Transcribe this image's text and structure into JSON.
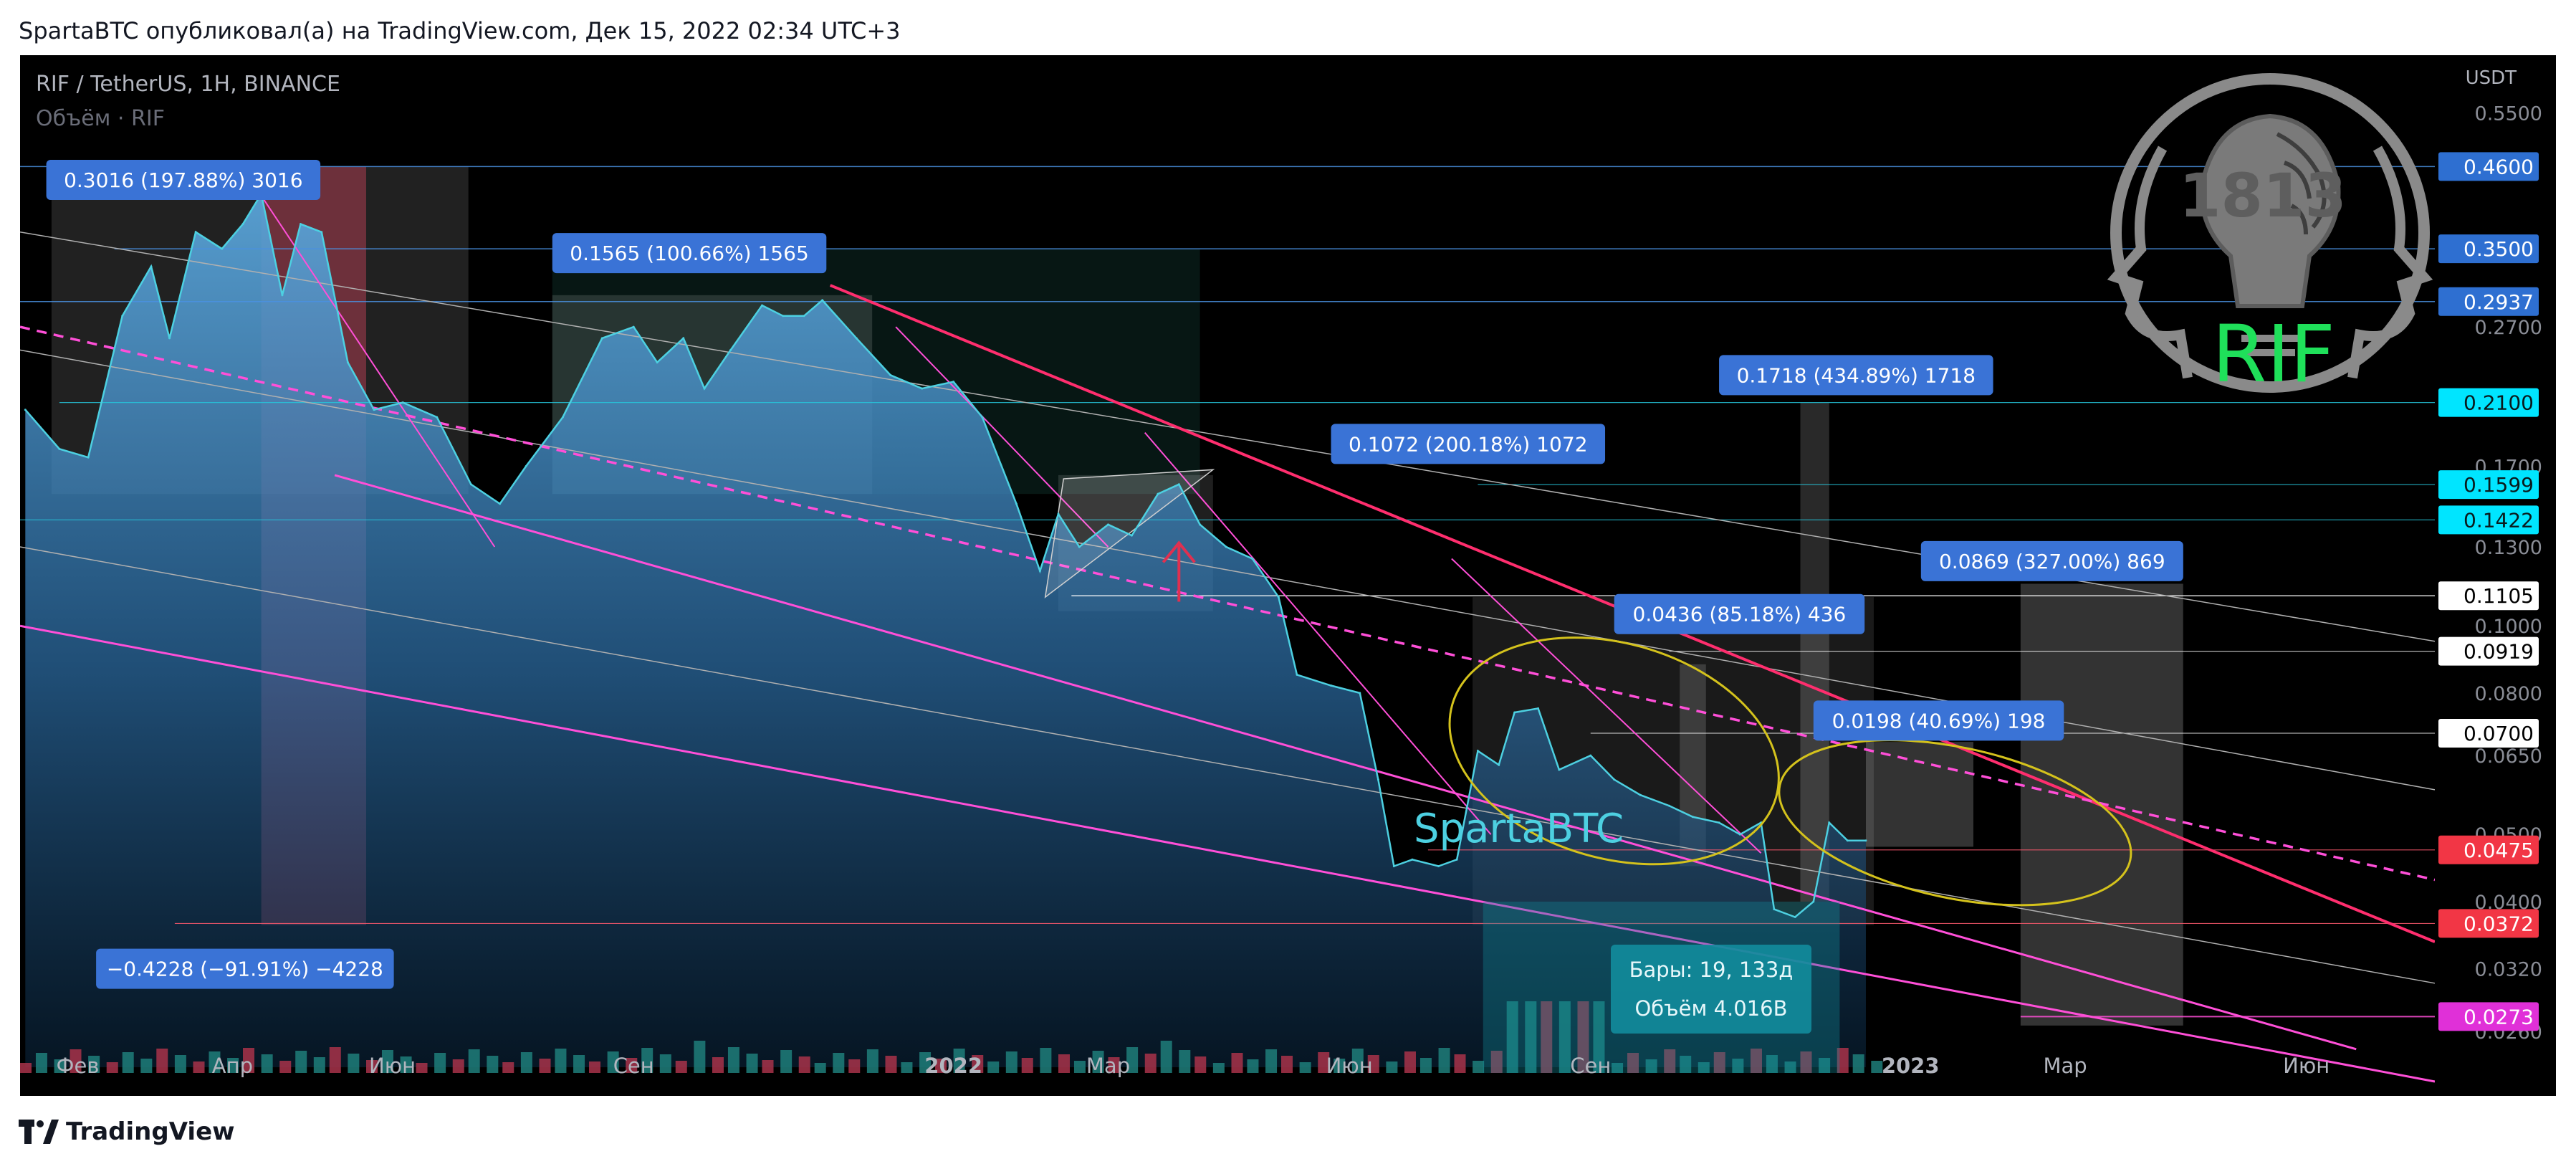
{
  "header": {
    "publisher_line": "SpartaBTC опубликовал(а) на TradingView.com, Дек 15, 2022 02:34 UTC+3"
  },
  "footer": {
    "brand": "TradingView"
  },
  "legend": {
    "symbol": "RIF / TetherUS, 1H, BINANCE",
    "volume": "Объём · RIF"
  },
  "watermark": {
    "author": "SpartaBTC",
    "logo_number": "1813",
    "logo_ticker": "RIF"
  },
  "measure_labels": [
    {
      "id": "m1",
      "text": "0.3016 (197.88%) 3016"
    },
    {
      "id": "m2",
      "text": "0.1565 (100.66%) 1565"
    },
    {
      "id": "m3",
      "text": "0.1072 (200.18%) 1072"
    },
    {
      "id": "m4",
      "text": "0.1718 (434.89%) 1718"
    },
    {
      "id": "m5",
      "text": "0.0436 (85.18%) 436"
    },
    {
      "id": "m6",
      "text": "0.0198 (40.69%) 198"
    },
    {
      "id": "m7",
      "text": "0.0869 (327.00%) 869"
    },
    {
      "id": "m8",
      "text": "−0.4228 (−91.91%) −4228"
    }
  ],
  "bars_info": {
    "line1": "Бары: 19, 133д",
    "line2": "Объём 4.016B"
  },
  "colors": {
    "background": "#000000",
    "price_line": "#4dd0e1",
    "price_fill_top": "#4f93c8",
    "measure_blue": "#2962ff",
    "pink": "#ff4fd8",
    "red_line": "#ff2e6e",
    "yellow": "#d4c21c",
    "cyan_tag": "#00e5ff"
  },
  "chart_data": {
    "type": "line",
    "title": "RIF / TetherUS, 1H, BINANCE",
    "y_scale": "log",
    "y_unit": "USDT",
    "ylim": [
      0.022,
      0.62
    ],
    "x_tick_labels": [
      "Фев",
      "Апр",
      "Июн",
      "Сен",
      "2022",
      "Мар",
      "Июн",
      "Сен",
      "2023",
      "Мар",
      "Июн"
    ],
    "x_ticks": [
      {
        "date": "2021-02-01",
        "label": "Фев"
      },
      {
        "date": "2021-04-01",
        "label": "Апр"
      },
      {
        "date": "2021-06-01",
        "label": "Июн"
      },
      {
        "date": "2021-09-01",
        "label": "Сен"
      },
      {
        "date": "2022-01-01",
        "label": "2022"
      },
      {
        "date": "2022-03-01",
        "label": "Мар"
      },
      {
        "date": "2022-06-01",
        "label": "Июн"
      },
      {
        "date": "2022-09-01",
        "label": "Сен"
      },
      {
        "date": "2023-01-01",
        "label": "2023"
      },
      {
        "date": "2023-03-01",
        "label": "Мар"
      },
      {
        "date": "2023-06-01",
        "label": "Июн"
      }
    ],
    "axis_ticks": [
      "0.5500",
      "0.2700",
      "0.1700",
      "0.1300",
      "0.1000",
      "0.0800",
      "0.0650",
      "0.0500",
      "0.0400",
      "0.0320",
      "0.0260"
    ],
    "price_tags": [
      {
        "label": "0.4600",
        "value": 0.46,
        "style": "blue"
      },
      {
        "label": "0.3500",
        "value": 0.35,
        "style": "blue"
      },
      {
        "label": "0.2937",
        "value": 0.2937,
        "style": "blue"
      },
      {
        "label": "0.2100",
        "value": 0.21,
        "style": "cyan"
      },
      {
        "label": "0.1599",
        "value": 0.1599,
        "style": "cyan"
      },
      {
        "label": "0.1422",
        "value": 0.1422,
        "style": "cyan"
      },
      {
        "label": "0.1105",
        "value": 0.1105,
        "style": "white"
      },
      {
        "label": "0.0919",
        "value": 0.0919,
        "style": "white"
      },
      {
        "label": "0.0700",
        "value": 0.07,
        "style": "white"
      },
      {
        "label": "0.0475",
        "value": 0.0475,
        "style": "red"
      },
      {
        "label": "0.0372",
        "value": 0.0372,
        "style": "red"
      },
      {
        "label": "0.0273",
        "value": 0.0273,
        "style": "magenta"
      }
    ],
    "series": [
      {
        "points": [
          [
            "2021-01-12",
            0.205
          ],
          [
            "2021-01-25",
            0.18
          ],
          [
            "2021-02-05",
            0.175
          ],
          [
            "2021-02-18",
            0.28
          ],
          [
            "2021-03-01",
            0.33
          ],
          [
            "2021-03-08",
            0.26
          ],
          [
            "2021-03-18",
            0.37
          ],
          [
            "2021-03-28",
            0.35
          ],
          [
            "2021-04-05",
            0.38
          ],
          [
            "2021-04-12",
            0.42
          ],
          [
            "2021-04-20",
            0.3
          ],
          [
            "2021-04-27",
            0.38
          ],
          [
            "2021-05-05",
            0.37
          ],
          [
            "2021-05-15",
            0.24
          ],
          [
            "2021-05-25",
            0.205
          ],
          [
            "2021-06-05",
            0.21
          ],
          [
            "2021-06-18",
            0.2
          ],
          [
            "2021-07-01",
            0.16
          ],
          [
            "2021-07-12",
            0.15
          ],
          [
            "2021-07-22",
            0.17
          ],
          [
            "2021-08-05",
            0.2
          ],
          [
            "2021-08-20",
            0.26
          ],
          [
            "2021-09-01",
            0.27
          ],
          [
            "2021-09-10",
            0.24
          ],
          [
            "2021-09-20",
            0.26
          ],
          [
            "2021-09-28",
            0.22
          ],
          [
            "2021-10-08",
            0.25
          ],
          [
            "2021-10-20",
            0.29
          ],
          [
            "2021-10-28",
            0.28
          ],
          [
            "2021-11-05",
            0.28
          ],
          [
            "2021-11-12",
            0.295
          ],
          [
            "2021-11-25",
            0.26
          ],
          [
            "2021-12-08",
            0.23
          ],
          [
            "2021-12-20",
            0.22
          ],
          [
            "2022-01-01",
            0.225
          ],
          [
            "2022-01-12",
            0.2
          ],
          [
            "2022-01-25",
            0.15
          ],
          [
            "2022-02-03",
            0.12
          ],
          [
            "2022-02-10",
            0.145
          ],
          [
            "2022-02-18",
            0.13
          ],
          [
            "2022-03-01",
            0.14
          ],
          [
            "2022-03-10",
            0.135
          ],
          [
            "2022-03-20",
            0.155
          ],
          [
            "2022-03-28",
            0.16
          ],
          [
            "2022-04-05",
            0.14
          ],
          [
            "2022-04-15",
            0.13
          ],
          [
            "2022-04-25",
            0.125
          ],
          [
            "2022-05-05",
            0.11
          ],
          [
            "2022-05-12",
            0.085
          ],
          [
            "2022-05-25",
            0.082
          ],
          [
            "2022-06-05",
            0.08
          ],
          [
            "2022-06-12",
            0.06
          ],
          [
            "2022-06-18",
            0.045
          ],
          [
            "2022-06-25",
            0.046
          ],
          [
            "2022-07-05",
            0.045
          ],
          [
            "2022-07-12",
            0.046
          ],
          [
            "2022-07-20",
            0.066
          ],
          [
            "2022-07-28",
            0.063
          ],
          [
            "2022-08-03",
            0.075
          ],
          [
            "2022-08-12",
            0.076
          ],
          [
            "2022-08-20",
            0.062
          ],
          [
            "2022-09-01",
            0.065
          ],
          [
            "2022-09-10",
            0.06
          ],
          [
            "2022-09-20",
            0.057
          ],
          [
            "2022-10-01",
            0.055
          ],
          [
            "2022-10-10",
            0.053
          ],
          [
            "2022-10-20",
            0.052
          ],
          [
            "2022-10-28",
            0.05
          ],
          [
            "2022-11-05",
            0.052
          ],
          [
            "2022-11-10",
            0.039
          ],
          [
            "2022-11-18",
            0.038
          ],
          [
            "2022-11-25",
            0.04
          ],
          [
            "2022-12-01",
            0.052
          ],
          [
            "2022-12-08",
            0.049
          ],
          [
            "2022-12-15",
            0.049
          ]
        ]
      }
    ]
  }
}
